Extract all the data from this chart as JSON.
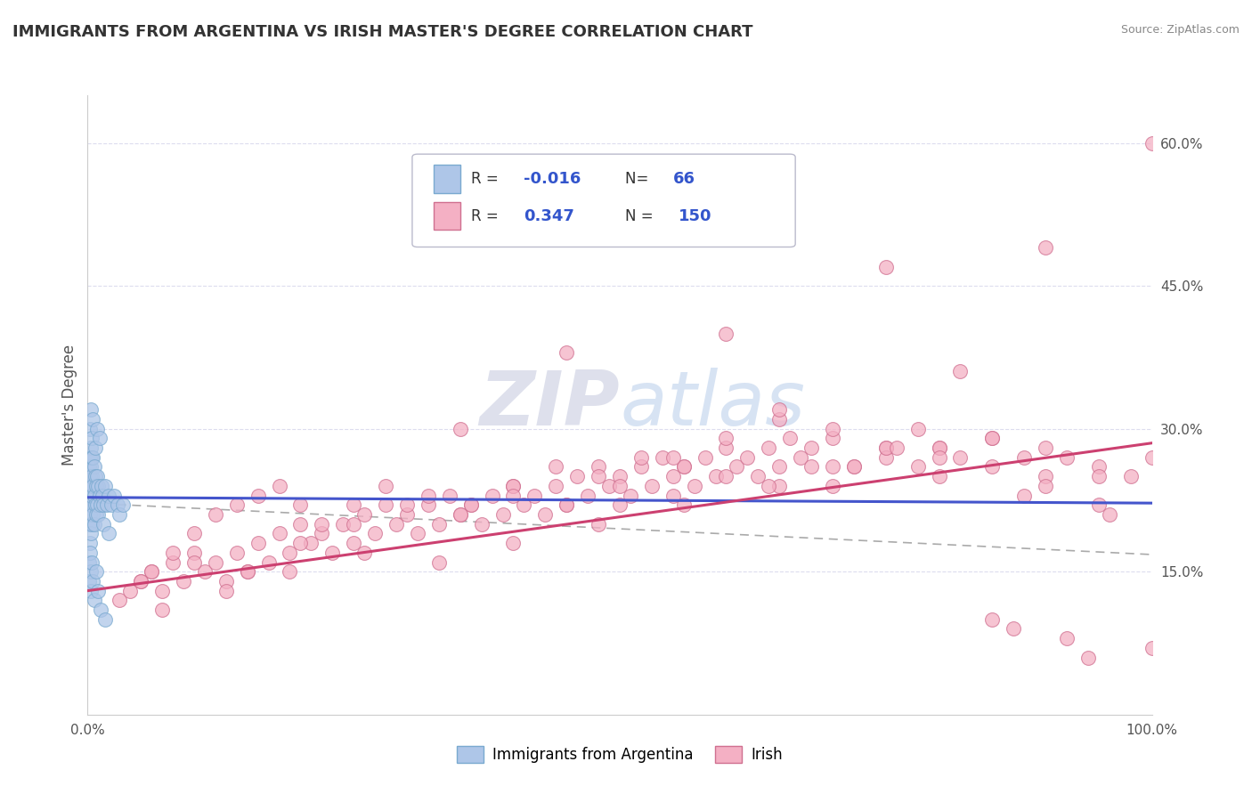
{
  "title": "IMMIGRANTS FROM ARGENTINA VS IRISH MASTER'S DEGREE CORRELATION CHART",
  "source_text": "Source: ZipAtlas.com",
  "ylabel": "Master's Degree",
  "xlim": [
    0.0,
    1.0
  ],
  "ylim": [
    0.0,
    0.65
  ],
  "ytick_right_values": [
    0.15,
    0.3,
    0.45,
    0.6
  ],
  "legend_R_color": "#3355cc",
  "argentina_color": "#aec6e8",
  "argentina_edge_color": "#7aaad0",
  "irish_color": "#f4b0c4",
  "irish_edge_color": "#d07090",
  "argentina_line_color": "#4455cc",
  "irish_line_color": "#cc4070",
  "dash_color": "#aaaaaa",
  "watermark_color": "#d8dff0",
  "background_color": "#ffffff",
  "grid_color": "#ddddee",
  "title_color": "#333333",
  "title_fontsize": 13,
  "argentina_trend": [
    0.228,
    0.222
  ],
  "irish_trend": [
    0.13,
    0.285
  ],
  "dash_trend": [
    0.222,
    0.168
  ],
  "argentina_scatter_x": [
    0.001,
    0.001,
    0.001,
    0.001,
    0.002,
    0.002,
    0.002,
    0.002,
    0.002,
    0.003,
    0.003,
    0.003,
    0.003,
    0.003,
    0.004,
    0.004,
    0.004,
    0.004,
    0.005,
    0.005,
    0.005,
    0.006,
    0.006,
    0.006,
    0.007,
    0.007,
    0.008,
    0.008,
    0.009,
    0.009,
    0.01,
    0.01,
    0.011,
    0.012,
    0.013,
    0.014,
    0.015,
    0.016,
    0.018,
    0.02,
    0.022,
    0.025,
    0.028,
    0.03,
    0.033,
    0.002,
    0.003,
    0.004,
    0.005,
    0.007,
    0.009,
    0.011,
    0.015,
    0.02,
    0.001,
    0.001,
    0.002,
    0.003,
    0.003,
    0.004,
    0.005,
    0.006,
    0.008,
    0.01,
    0.012,
    0.016
  ],
  "argentina_scatter_y": [
    0.2,
    0.22,
    0.24,
    0.26,
    0.18,
    0.21,
    0.23,
    0.25,
    0.27,
    0.19,
    0.22,
    0.24,
    0.26,
    0.28,
    0.2,
    0.23,
    0.25,
    0.27,
    0.21,
    0.24,
    0.27,
    0.2,
    0.23,
    0.26,
    0.22,
    0.25,
    0.21,
    0.24,
    0.22,
    0.25,
    0.21,
    0.24,
    0.23,
    0.22,
    0.24,
    0.23,
    0.22,
    0.24,
    0.22,
    0.23,
    0.22,
    0.23,
    0.22,
    0.21,
    0.22,
    0.3,
    0.32,
    0.29,
    0.31,
    0.28,
    0.3,
    0.29,
    0.2,
    0.19,
    0.16,
    0.14,
    0.17,
    0.15,
    0.13,
    0.16,
    0.14,
    0.12,
    0.15,
    0.13,
    0.11,
    0.1
  ],
  "irish_scatter_x": [
    0.03,
    0.05,
    0.06,
    0.07,
    0.08,
    0.09,
    0.1,
    0.11,
    0.12,
    0.13,
    0.14,
    0.15,
    0.16,
    0.17,
    0.18,
    0.19,
    0.2,
    0.21,
    0.22,
    0.23,
    0.24,
    0.25,
    0.26,
    0.27,
    0.28,
    0.29,
    0.3,
    0.31,
    0.32,
    0.33,
    0.34,
    0.35,
    0.36,
    0.37,
    0.38,
    0.39,
    0.4,
    0.41,
    0.42,
    0.43,
    0.44,
    0.45,
    0.46,
    0.47,
    0.48,
    0.49,
    0.5,
    0.51,
    0.52,
    0.53,
    0.54,
    0.55,
    0.56,
    0.57,
    0.58,
    0.59,
    0.6,
    0.61,
    0.62,
    0.63,
    0.64,
    0.65,
    0.66,
    0.67,
    0.68,
    0.7,
    0.72,
    0.75,
    0.78,
    0.8,
    0.82,
    0.85,
    0.88,
    0.9,
    0.92,
    0.95,
    0.98,
    1.0,
    0.04,
    0.06,
    0.08,
    0.1,
    0.12,
    0.14,
    0.16,
    0.18,
    0.2,
    0.22,
    0.25,
    0.28,
    0.32,
    0.36,
    0.4,
    0.44,
    0.48,
    0.52,
    0.56,
    0.6,
    0.65,
    0.7,
    0.75,
    0.8,
    0.85,
    0.9,
    0.95,
    1.0,
    0.05,
    0.1,
    0.15,
    0.2,
    0.25,
    0.3,
    0.35,
    0.4,
    0.45,
    0.5,
    0.55,
    0.6,
    0.65,
    0.7,
    0.75,
    0.8,
    0.85,
    0.9,
    0.95,
    1.0,
    0.07,
    0.13,
    0.19,
    0.26,
    0.33,
    0.4,
    0.48,
    0.56,
    0.64,
    0.72,
    0.8,
    0.88,
    0.96,
    0.45,
    0.6,
    0.75,
    0.9,
    0.35,
    0.55,
    0.78,
    0.85,
    0.7,
    0.92,
    0.5,
    0.65,
    0.82,
    0.68,
    0.76,
    0.87,
    0.94
  ],
  "irish_scatter_y": [
    0.12,
    0.14,
    0.15,
    0.13,
    0.16,
    0.14,
    0.17,
    0.15,
    0.16,
    0.14,
    0.17,
    0.15,
    0.18,
    0.16,
    0.19,
    0.17,
    0.2,
    0.18,
    0.19,
    0.17,
    0.2,
    0.18,
    0.21,
    0.19,
    0.22,
    0.2,
    0.21,
    0.19,
    0.22,
    0.2,
    0.23,
    0.21,
    0.22,
    0.2,
    0.23,
    0.21,
    0.24,
    0.22,
    0.23,
    0.21,
    0.24,
    0.22,
    0.25,
    0.23,
    0.26,
    0.24,
    0.25,
    0.23,
    0.26,
    0.24,
    0.27,
    0.25,
    0.26,
    0.24,
    0.27,
    0.25,
    0.28,
    0.26,
    0.27,
    0.25,
    0.28,
    0.26,
    0.29,
    0.27,
    0.26,
    0.24,
    0.26,
    0.28,
    0.26,
    0.28,
    0.27,
    0.29,
    0.27,
    0.25,
    0.27,
    0.26,
    0.25,
    0.6,
    0.13,
    0.15,
    0.17,
    0.19,
    0.21,
    0.22,
    0.23,
    0.24,
    0.22,
    0.2,
    0.22,
    0.24,
    0.23,
    0.22,
    0.24,
    0.26,
    0.25,
    0.27,
    0.26,
    0.29,
    0.31,
    0.29,
    0.27,
    0.28,
    0.26,
    0.24,
    0.22,
    0.07,
    0.14,
    0.16,
    0.15,
    0.18,
    0.2,
    0.22,
    0.21,
    0.23,
    0.22,
    0.24,
    0.23,
    0.25,
    0.24,
    0.26,
    0.28,
    0.27,
    0.29,
    0.28,
    0.25,
    0.27,
    0.11,
    0.13,
    0.15,
    0.17,
    0.16,
    0.18,
    0.2,
    0.22,
    0.24,
    0.26,
    0.25,
    0.23,
    0.21,
    0.38,
    0.4,
    0.47,
    0.49,
    0.3,
    0.27,
    0.3,
    0.1,
    0.3,
    0.08,
    0.22,
    0.32,
    0.36,
    0.28,
    0.28,
    0.09,
    0.06
  ]
}
